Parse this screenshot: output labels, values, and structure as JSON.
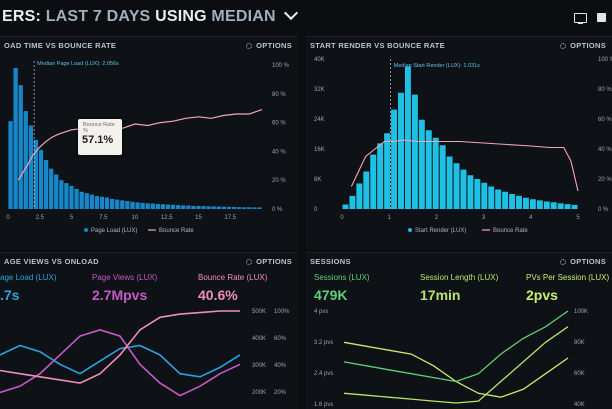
{
  "header": {
    "title_prefix": "ERS:",
    "title_mid": "LAST 7 DAYS",
    "title_using": "USING",
    "title_metric": "MEDIAN"
  },
  "panels": {
    "load_bounce": {
      "title": "OAD TIME VS BOUNCE RATE",
      "options_label": "OPTIONS",
      "annotation": "Median Page Load (LUX): 2.056s",
      "tooltip_label": "Bounce Rate",
      "tooltip_sub": "%",
      "tooltip_value": "57.1%",
      "legend_bar": "Page Load (LUX)",
      "legend_line": "Bounce Rate"
    },
    "render_bounce": {
      "title": "START RENDER VS BOUNCE RATE",
      "options_label": "OPTIONS",
      "annotation": "Median Start Render (LUX): 1.031s",
      "legend_bar": "Start Render (LUX)",
      "legend_line": "Bounce Rate"
    },
    "page_views": {
      "title": "AGE VIEWS VS ONLOAD",
      "options_label": "OPTIONS",
      "metrics": [
        {
          "label": "age Load (LUX)",
          "value": ".7s",
          "color": "#2aa3e0"
        },
        {
          "label": "Page Views (LUX)",
          "value": "2.7Mpvs",
          "color": "#c45bc4"
        },
        {
          "label": "Bounce Rate (LUX)",
          "value": "40.6%",
          "color": "#ee8fb8"
        }
      ]
    },
    "sessions": {
      "title": "SESSIONS",
      "options_label": "OPTIONS",
      "metrics": [
        {
          "label": "Sessions (LUX)",
          "value": "479K",
          "color": "#5fd07a"
        },
        {
          "label": "Session Length (LUX)",
          "value": "17min",
          "color": "#b7e46a"
        },
        {
          "label": "PVs Per Session (LUX)",
          "value": "2pvs",
          "color": "#c7ef6a"
        }
      ]
    }
  },
  "chart_data": [
    {
      "type": "bar",
      "title": "",
      "x_ticks": [
        "0",
        "2.5",
        "5",
        "7.5",
        "10",
        "12.5",
        "15",
        "17.5"
      ],
      "y_right_ticks": [
        "0 %",
        "20 %",
        "40 %",
        "60 %",
        "80 %",
        "100 %"
      ],
      "xlim": [
        0,
        20
      ],
      "bars": [
        0.61,
        0.98,
        0.86,
        0.68,
        0.58,
        0.48,
        0.41,
        0.34,
        0.28,
        0.24,
        0.2,
        0.18,
        0.16,
        0.14,
        0.12,
        0.11,
        0.1,
        0.09,
        0.085,
        0.08,
        0.07,
        0.065,
        0.06,
        0.055,
        0.05,
        0.046,
        0.043,
        0.04,
        0.038,
        0.035,
        0.033,
        0.031,
        0.029,
        0.027,
        0.025,
        0.024,
        0.022,
        0.021,
        0.02,
        0.019,
        0.018,
        0.017,
        0.016,
        0.015,
        0.014,
        0.013,
        0.012,
        0.012,
        0.011,
        0.011
      ],
      "series": [
        {
          "name": "Bounce Rate",
          "x": [
            0.8,
            1.5,
            2.0,
            2.5,
            3.0,
            3.5,
            4.0,
            5.0,
            6.0,
            7.0,
            8.0,
            9.0,
            10.0,
            11.0,
            12.0,
            13.0,
            14.0,
            15.0,
            16.0,
            17.0,
            18.0,
            19.0,
            20.0
          ],
          "y": [
            20,
            30,
            38,
            43,
            47,
            50,
            52,
            55,
            56,
            57,
            57,
            56,
            59,
            58,
            60,
            61,
            63,
            64,
            63,
            65,
            66,
            66,
            69
          ]
        }
      ],
      "median": 2.056
    },
    {
      "type": "bar",
      "title": "",
      "x_ticks": [
        "0",
        "1",
        "2",
        "3",
        "4",
        "5"
      ],
      "y_left_ticks": [
        "0",
        "8K",
        "16K",
        "24K",
        "32K",
        "40K"
      ],
      "y_right_ticks": [
        "0 %",
        "20 %",
        "40 %",
        "60 %",
        "80 %",
        "100 %"
      ],
      "xlim": [
        0,
        5
      ],
      "ylim": [
        0,
        40000
      ],
      "bars": [
        1200,
        3500,
        6800,
        10000,
        14500,
        17500,
        20200,
        26500,
        31000,
        38000,
        30500,
        23800,
        21000,
        19000,
        17000,
        14000,
        12200,
        10500,
        9000,
        8000,
        7000,
        6000,
        5200,
        4600,
        4000,
        3500,
        3000,
        2600,
        2300,
        2000,
        1800,
        1500,
        1300,
        1100
      ],
      "series": [
        {
          "name": "Bounce Rate",
          "x": [
            0.2,
            0.35,
            0.5,
            0.7,
            0.9,
            1.1,
            1.3,
            1.6,
            2.0,
            2.5,
            3.0,
            3.5,
            4.0,
            4.4,
            4.7,
            4.85,
            5.0
          ],
          "y": [
            15,
            25,
            35,
            40,
            45,
            45,
            46,
            45,
            45,
            45,
            44,
            43,
            42,
            41,
            41,
            32,
            12
          ]
        }
      ],
      "median": 1.031
    },
    {
      "type": "line",
      "title": "",
      "y_right_ticks": [
        "200K",
        "300K",
        "400K",
        "500K"
      ],
      "y_right2_ticks": [
        "20%",
        "40%",
        "60%",
        "100%"
      ],
      "series": [
        {
          "name": "",
          "color": "#2aa3e0",
          "x": [
            0,
            1,
            2,
            3,
            4,
            5,
            6,
            7,
            8,
            9,
            10,
            11,
            12
          ],
          "y": [
            360,
            390,
            370,
            330,
            300,
            340,
            380,
            390,
            360,
            300,
            290,
            320,
            360
          ]
        },
        {
          "name": "",
          "color": "#c45bc4",
          "x": [
            0,
            1,
            2,
            3,
            4,
            5,
            6,
            7,
            8,
            9,
            10,
            11,
            12
          ],
          "y": [
            240,
            260,
            300,
            360,
            420,
            440,
            420,
            330,
            270,
            230,
            260,
            300,
            330
          ]
        },
        {
          "name": "",
          "color": "#ee8fb8",
          "x": [
            0,
            1,
            2,
            3,
            4,
            5,
            6,
            7,
            8,
            9,
            10,
            11,
            12
          ],
          "y": [
            310,
            300,
            290,
            280,
            270,
            300,
            360,
            440,
            480,
            490,
            495,
            500,
            500
          ]
        }
      ]
    },
    {
      "type": "line",
      "title": "",
      "y_left_ticks": [
        "1.6 pvs",
        "2.4 pvs",
        "3.2 pvs",
        "4 pvs"
      ],
      "y_right_ticks": [
        "40K",
        "60K",
        "80K",
        "100K"
      ],
      "series": [
        {
          "name": "",
          "color": "#c7ef6a",
          "x": [
            0,
            1,
            2,
            3,
            4,
            5,
            6,
            7,
            8,
            9,
            10
          ],
          "y": [
            3.2,
            3.1,
            3.0,
            2.9,
            2.6,
            2.2,
            1.9,
            1.8,
            2.0,
            2.4,
            2.8
          ]
        },
        {
          "name": "",
          "color": "#5fd07a",
          "x": [
            0,
            1,
            2,
            3,
            4,
            5,
            6,
            7,
            8,
            9,
            10
          ],
          "y": [
            2.7,
            2.6,
            2.5,
            2.4,
            2.3,
            2.2,
            2.4,
            2.9,
            3.3,
            3.6,
            4.0
          ]
        },
        {
          "name": "",
          "color": "#b7e46a",
          "x": [
            0,
            1,
            2,
            3,
            4,
            5,
            6,
            7,
            8,
            9,
            10
          ],
          "y": [
            1.9,
            1.85,
            1.8,
            1.75,
            1.7,
            1.65,
            1.7,
            2.2,
            2.7,
            3.2,
            3.6
          ]
        }
      ]
    }
  ],
  "colors": {
    "bar_blue": "#1787c9",
    "bar_cyan": "#1ec1e4",
    "bounce_line": "#f2a7b8",
    "median_line": "#d7e3ea"
  }
}
